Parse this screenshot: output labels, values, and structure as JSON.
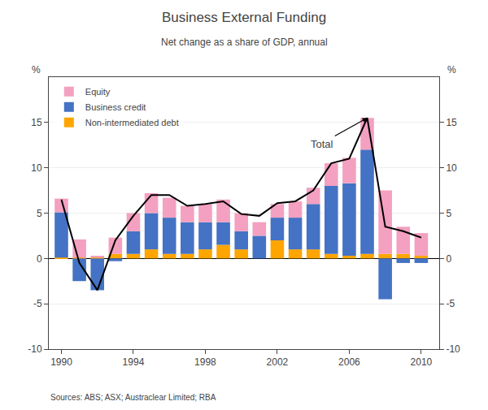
{
  "chart_data": {
    "type": "bar",
    "stacked": true,
    "title": "Business External Funding",
    "subtitle": "Net change as a share of GDP, annual",
    "source": "Sources: ABS; ASX; Austraclear Limited; RBA",
    "x": [
      1990,
      1991,
      1992,
      1993,
      1994,
      1995,
      1996,
      1997,
      1998,
      1999,
      2000,
      2001,
      2002,
      2003,
      2004,
      2005,
      2006,
      2007,
      2008,
      2009,
      2010
    ],
    "series": [
      {
        "name": "Non-intermediated debt",
        "color": "#ffa500",
        "values": [
          0.1,
          0.1,
          0.1,
          0.5,
          0.5,
          1.0,
          0.5,
          0.5,
          1.0,
          1.5,
          1.0,
          0.0,
          2.0,
          1.0,
          1.0,
          0.5,
          0.3,
          0.5,
          0.5,
          0.5,
          0.3
        ]
      },
      {
        "name": "Business credit",
        "color": "#4472c4",
        "values": [
          5.0,
          -2.5,
          -3.5,
          -0.3,
          2.5,
          4.0,
          4.0,
          3.5,
          3.0,
          2.5,
          2.0,
          2.5,
          2.5,
          3.5,
          5.0,
          7.5,
          8.0,
          11.5,
          -4.5,
          -0.5,
          -0.5
        ]
      },
      {
        "name": "Equity",
        "color": "#f4a0c0",
        "values": [
          1.5,
          2.0,
          0.2,
          1.8,
          2.0,
          2.2,
          2.2,
          1.8,
          2.0,
          2.5,
          2.0,
          1.5,
          1.5,
          1.8,
          1.8,
          2.5,
          2.8,
          3.5,
          7.0,
          3.0,
          2.5
        ]
      },
      {
        "type": "line",
        "color": "#000000",
        "values": [
          6.5,
          -0.5,
          -3.5,
          2.0,
          4.7,
          7.0,
          7.0,
          5.8,
          6.0,
          6.3,
          4.9,
          4.7,
          6.1,
          6.3,
          7.5,
          10.5,
          11.0,
          15.5,
          3.5,
          3.0,
          2.3
        ]
      }
    ],
    "annotations": [
      {
        "text": "Total",
        "x": 2005.2,
        "y": 13.5,
        "arrow_x": 2007.0,
        "arrow_y": 15.5
      }
    ],
    "xlim": [
      1989.3,
      2011.0
    ],
    "xticks": [
      1990,
      1994,
      1998,
      2002,
      2006,
      2010
    ],
    "ylim": [
      -10,
      20
    ],
    "yticks": [
      -10,
      -5,
      0,
      5,
      10,
      15
    ],
    "y2lim": [
      -10,
      20
    ],
    "y2ticks": [
      -10,
      -5,
      0,
      5,
      10,
      15
    ],
    "ylabel": "%",
    "y2label": "%",
    "grid": true,
    "legend": "upper left"
  }
}
